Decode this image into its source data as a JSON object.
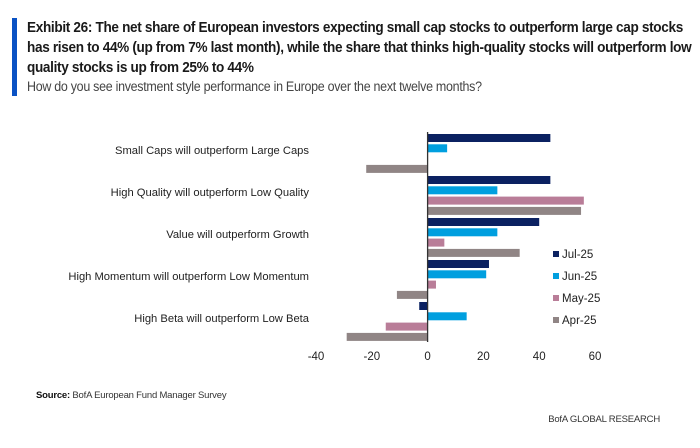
{
  "header": {
    "title": "Exhibit 26: The net share of European investors expecting small cap stocks to outperform large cap stocks has risen to 44% (up from 7% last month), while the share that thinks high-quality stocks will outperform low quality stocks is up from 25% to 44%",
    "subtitle": "How do you see investment style performance in Europe over the next twelve months?",
    "accent_color": "#0a52c4"
  },
  "chart_data": {
    "type": "bar",
    "orientation": "horizontal",
    "title": "How do you see investment style performance in Europe over the next twelve months?",
    "xlabel": "",
    "ylabel": "",
    "xlim": [
      -40,
      60
    ],
    "xticks": [
      -40,
      -20,
      0,
      20,
      40,
      60
    ],
    "grid": false,
    "legend_position": "right",
    "categories": [
      "Small Caps will outperform Large Caps",
      "High Quality will outperform Low Quality",
      "Value will outperform Growth",
      "High Momentum will outperform Low Momentum",
      "High Beta will outperform Low Beta"
    ],
    "series": [
      {
        "name": "Jul-25",
        "color": "#0b2161",
        "values": [
          44,
          44,
          40,
          22,
          -3
        ]
      },
      {
        "name": "Jun-25",
        "color": "#009fdf",
        "values": [
          7,
          25,
          25,
          21,
          14
        ]
      },
      {
        "name": "May-25",
        "color": "#b97d98",
        "values": [
          0,
          56,
          6,
          3,
          -15
        ]
      },
      {
        "name": "Apr-25",
        "color": "#908585",
        "values": [
          -22,
          55,
          33,
          -11,
          -29
        ]
      }
    ]
  },
  "footer": {
    "source_label": "Source:",
    "source_text": " BofA European Fund Manager Survey",
    "brand": "BofA GLOBAL RESEARCH"
  }
}
